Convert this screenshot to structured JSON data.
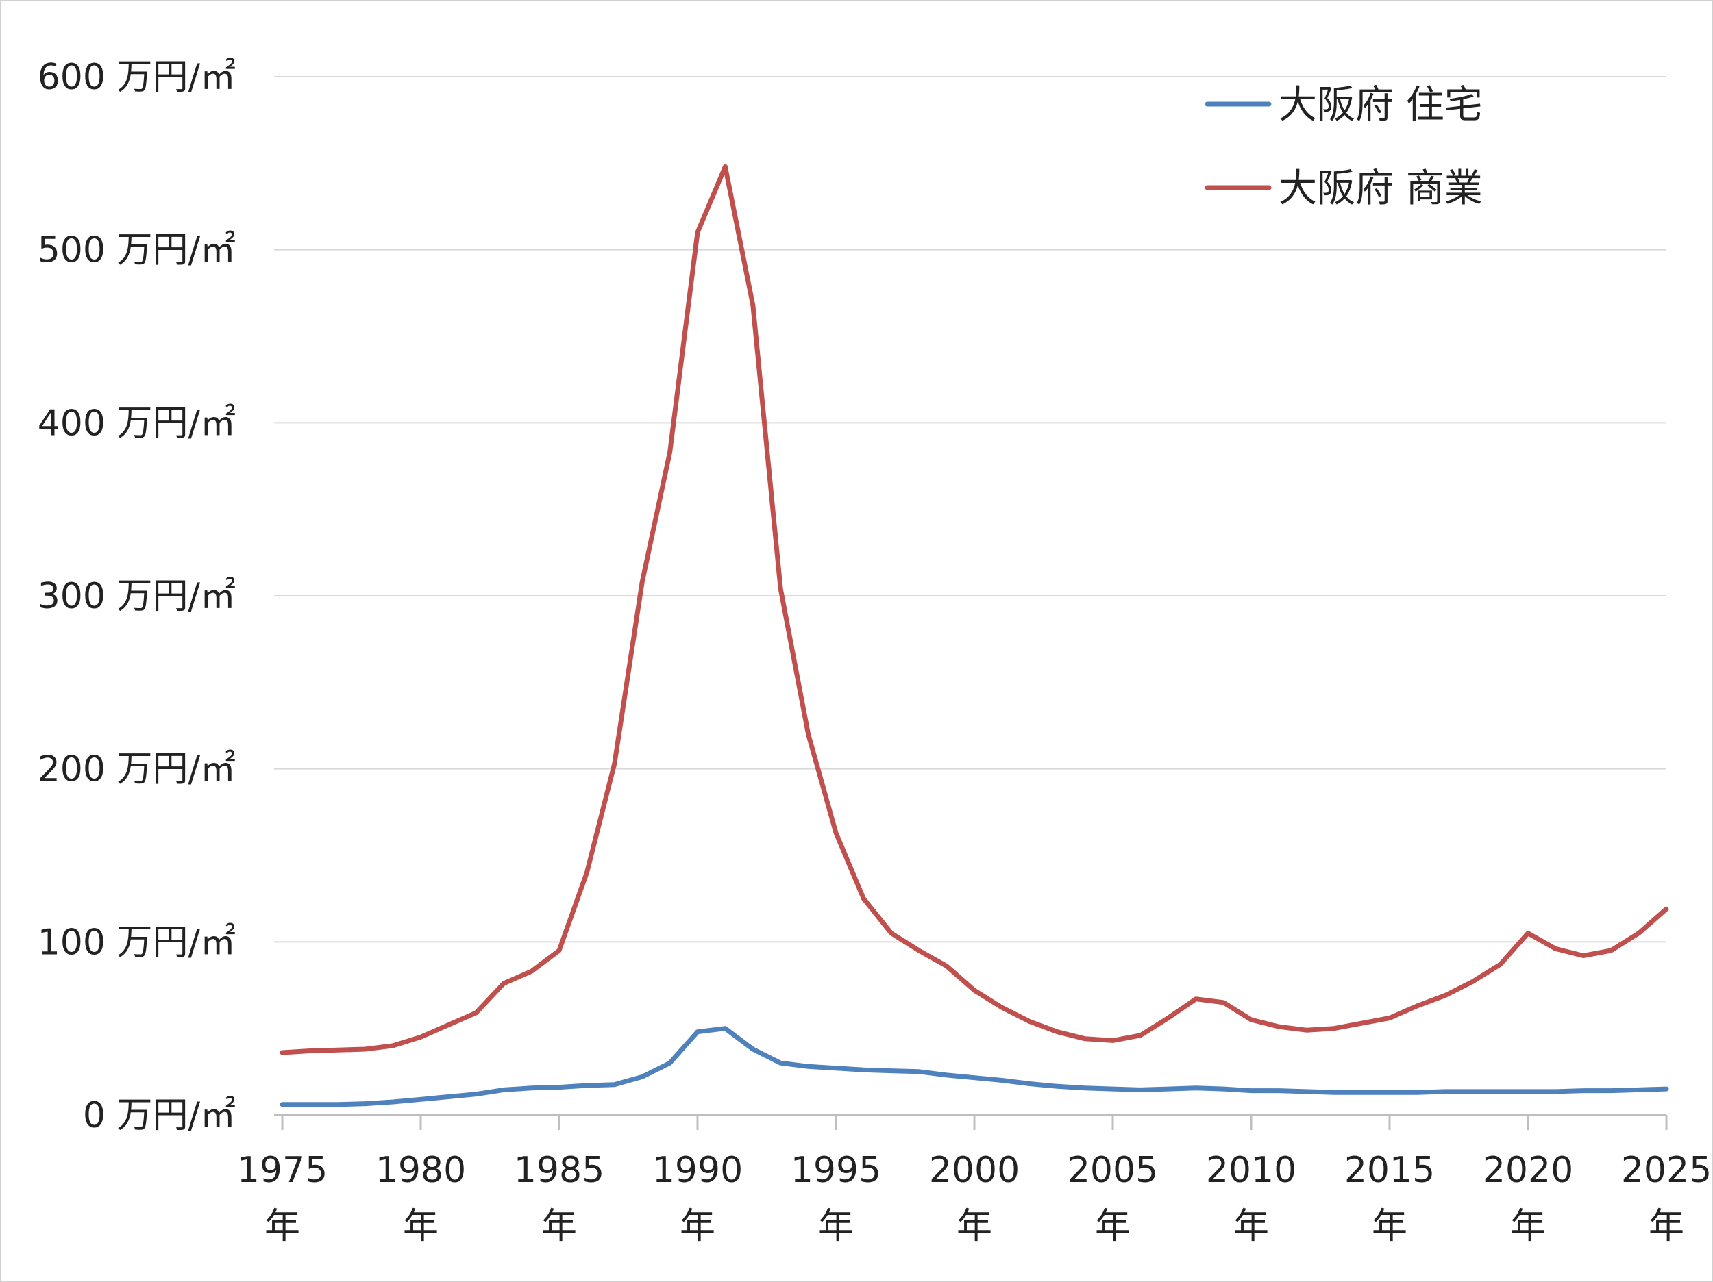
{
  "chart_data": {
    "type": "line",
    "title": "",
    "xlabel": "",
    "ylabel": "",
    "y_unit_suffix": "万円/㎡",
    "x_unit_suffix": "年",
    "ylim": [
      0,
      600
    ],
    "xlim": [
      1975,
      2025
    ],
    "y_ticks": [
      0,
      100,
      200,
      300,
      400,
      500,
      600
    ],
    "x_ticks": [
      1975,
      1980,
      1985,
      1990,
      1995,
      2000,
      2005,
      2010,
      2015,
      2020,
      2025
    ],
    "grid": true,
    "legend_position": "top-right",
    "x": [
      1975,
      1976,
      1977,
      1978,
      1979,
      1980,
      1981,
      1982,
      1983,
      1984,
      1985,
      1986,
      1987,
      1988,
      1989,
      1990,
      1991,
      1992,
      1993,
      1994,
      1995,
      1996,
      1997,
      1998,
      1999,
      2000,
      2001,
      2002,
      2003,
      2004,
      2005,
      2006,
      2007,
      2008,
      2009,
      2010,
      2011,
      2012,
      2013,
      2014,
      2015,
      2016,
      2017,
      2018,
      2019,
      2020,
      2021,
      2022,
      2023,
      2024,
      2025
    ],
    "series": [
      {
        "name": "大阪府 住宅",
        "color": "#4f81bd",
        "values": [
          6,
          6,
          6,
          6.5,
          7.5,
          9,
          10.5,
          12,
          14.5,
          15.5,
          16,
          17,
          17.5,
          22,
          30,
          48,
          50,
          38,
          30,
          28,
          27,
          26,
          25.5,
          25,
          23,
          21.5,
          20,
          18,
          16.5,
          15.5,
          15,
          14.5,
          15,
          15.5,
          15,
          14,
          14,
          13.5,
          13,
          13,
          13,
          13,
          13.5,
          13.5,
          13.5,
          13.5,
          13.5,
          14,
          14,
          14.5,
          15
        ]
      },
      {
        "name": "大阪府 商業",
        "color": "#c0504d",
        "values": [
          36,
          37,
          37.5,
          38,
          40,
          45,
          52,
          59,
          76,
          83,
          95,
          140,
          203,
          308,
          383,
          510,
          548,
          468,
          304,
          220,
          163,
          125,
          105,
          95,
          86,
          72,
          62,
          54,
          48,
          44,
          43,
          46,
          56,
          67,
          65,
          55,
          51,
          49,
          50,
          53,
          56,
          63,
          69,
          77,
          87,
          105,
          96,
          92,
          95,
          105,
          119
        ]
      }
    ]
  }
}
